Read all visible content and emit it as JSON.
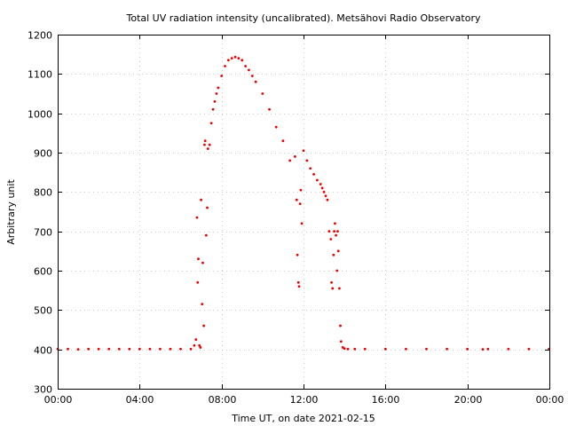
{
  "chart_data": {
    "type": "scatter",
    "title": "Total UV radiation intensity (uncalibrated). Metsähovi Radio Observatory",
    "xlabel": "Time UT, on date 2021-02-15",
    "ylabel": "Arbitrary unit",
    "xlim": [
      "00:00",
      "24:00"
    ],
    "ylim": [
      300,
      1200
    ],
    "xticks": [
      "00:00",
      "04:00",
      "08:00",
      "12:00",
      "16:00",
      "20:00",
      "00:00"
    ],
    "yticks": [
      "300",
      "400",
      "500",
      "600",
      "700",
      "800",
      "900",
      "1000",
      "1100",
      "1200"
    ],
    "grid": true,
    "color": "#ee0000",
    "x": [
      "00:00",
      "00:30",
      "01:00",
      "01:30",
      "02:00",
      "02:30",
      "03:00",
      "03:30",
      "04:00",
      "04:30",
      "05:00",
      "05:30",
      "06:00",
      "06:30",
      "06:40",
      "06:45",
      "06:48",
      "06:50",
      "06:52",
      "06:55",
      "06:58",
      "07:00",
      "07:03",
      "07:05",
      "07:08",
      "07:10",
      "07:12",
      "07:15",
      "07:18",
      "07:20",
      "07:25",
      "07:30",
      "07:35",
      "07:40",
      "07:45",
      "07:50",
      "08:00",
      "08:10",
      "08:20",
      "08:30",
      "08:40",
      "08:50",
      "09:00",
      "09:10",
      "09:20",
      "09:30",
      "09:40",
      "10:00",
      "10:20",
      "10:40",
      "11:00",
      "11:20",
      "11:35",
      "11:40",
      "11:42",
      "11:45",
      "11:47",
      "11:50",
      "11:52",
      "11:55",
      "12:00",
      "12:10",
      "12:20",
      "12:30",
      "12:40",
      "12:50",
      "12:55",
      "13:00",
      "13:05",
      "13:10",
      "13:15",
      "13:20",
      "13:22",
      "13:25",
      "13:28",
      "13:30",
      "13:32",
      "13:35",
      "13:38",
      "13:40",
      "13:42",
      "13:45",
      "13:48",
      "13:50",
      "13:55",
      "14:00",
      "14:10",
      "14:30",
      "15:00",
      "16:00",
      "17:00",
      "18:00",
      "19:00",
      "20:00",
      "20:45",
      "21:00",
      "22:00",
      "23:00",
      "23:59"
    ],
    "y": [
      401,
      401,
      400,
      401,
      401,
      401,
      401,
      401,
      401,
      401,
      401,
      401,
      401,
      401,
      410,
      425,
      735,
      570,
      630,
      410,
      405,
      780,
      515,
      620,
      460,
      920,
      930,
      690,
      760,
      910,
      920,
      975,
      1010,
      1030,
      1050,
      1065,
      1095,
      1120,
      1135,
      1140,
      1143,
      1140,
      1135,
      1120,
      1110,
      1095,
      1080,
      1050,
      1010,
      965,
      930,
      880,
      890,
      780,
      640,
      570,
      560,
      770,
      805,
      720,
      905,
      880,
      860,
      845,
      830,
      820,
      810,
      800,
      790,
      780,
      700,
      680,
      570,
      555,
      640,
      700,
      720,
      690,
      600,
      700,
      650,
      555,
      460,
      420,
      405,
      402,
      401,
      401,
      401,
      401,
      401,
      401,
      401,
      401,
      400,
      401,
      401,
      401,
      401
    ]
  }
}
